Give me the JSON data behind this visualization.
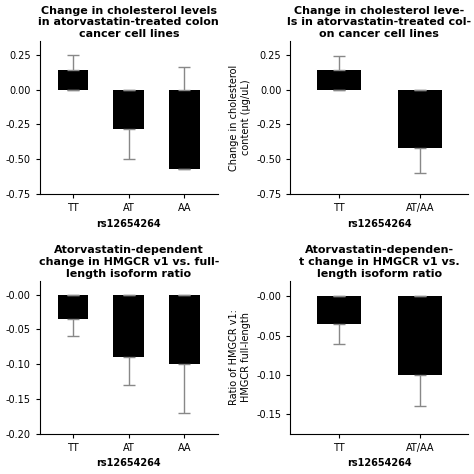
{
  "plots": [
    {
      "title": "Change in cholesterol levels\nin atorvastatin-treated colon\ncancer cell lines",
      "xlabel": "rs12654264",
      "ylabel": "",
      "categories": [
        "TT",
        "AT",
        "AA"
      ],
      "bar_bottoms": [
        0.0,
        -0.28,
        -0.57
      ],
      "bar_tops": [
        0.14,
        0.0,
        0.0
      ],
      "err_low": [
        0.0,
        0.22,
        0.0
      ],
      "err_high": [
        0.11,
        0.0,
        0.16
      ],
      "ylim": [
        -0.75,
        0.35
      ],
      "yticks": [
        -0.75,
        -0.5,
        -0.25,
        0.0,
        0.25
      ],
      "ytick_labels": [
        "-0.75",
        "-0.50",
        "-0.25",
        "0.00",
        "0.25"
      ],
      "has_ylabel": false,
      "col": 0
    },
    {
      "title": "Change in cholesterol leve-\nls in atorvastatin-treated col-\non cancer cell lines",
      "xlabel": "rs12654264",
      "ylabel": "Change in cholesterol\ncontent (μg/uL)",
      "categories": [
        "TT",
        "AT/AA"
      ],
      "bar_bottoms": [
        0.0,
        -0.42
      ],
      "bar_tops": [
        0.14,
        0.0
      ],
      "err_low": [
        0.0,
        0.18
      ],
      "err_high": [
        0.1,
        0.0
      ],
      "ylim": [
        -0.75,
        0.35
      ],
      "yticks": [
        -0.75,
        -0.5,
        -0.25,
        0.0,
        0.25
      ],
      "ytick_labels": [
        "-0.75",
        "-0.50",
        "-0.25",
        "0.00",
        "0.25"
      ],
      "has_ylabel": true,
      "col": 1
    },
    {
      "title": "Atorvastatin-dependent\nchange in HMGCR v1 vs. full-\nlength isoform ratio",
      "xlabel": "rs12654264",
      "ylabel": "",
      "categories": [
        "TT",
        "AT",
        "AA"
      ],
      "bar_bottoms": [
        -0.035,
        -0.09,
        -0.1
      ],
      "bar_tops": [
        0.0,
        0.0,
        0.0
      ],
      "err_low": [
        0.025,
        0.04,
        0.07
      ],
      "err_high": [
        0.0,
        0.0,
        0.0
      ],
      "ylim": [
        -0.2,
        0.02
      ],
      "yticks": [
        -0.2,
        -0.15,
        -0.1,
        -0.05,
        0.0
      ],
      "ytick_labels": [
        "-0.20",
        "-0.15",
        "-0.10",
        "-0.05",
        "-0.00"
      ],
      "has_ylabel": false,
      "col": 0
    },
    {
      "title": "Atorvastatin-dependen-\nt change in HMGCR v1 vs.\nlength isoform ratio",
      "xlabel": "rs12654264",
      "ylabel": "Ratio of HMGCR v1:\nHMGCR full-length",
      "categories": [
        "TT",
        "AT/AA"
      ],
      "bar_bottoms": [
        -0.035,
        -0.1
      ],
      "bar_tops": [
        0.0,
        0.0
      ],
      "err_low": [
        0.025,
        0.04
      ],
      "err_high": [
        0.0,
        0.0
      ],
      "ylim": [
        -0.175,
        0.02
      ],
      "yticks": [
        -0.15,
        -0.1,
        -0.05,
        0.0
      ],
      "ytick_labels": [
        "-0.15",
        "-0.10",
        "-0.05",
        "-0.00"
      ],
      "has_ylabel": true,
      "col": 1
    }
  ],
  "bar_color": "#000000",
  "bar_width": 0.55,
  "capsize": 4,
  "error_color": "#888888",
  "error_linewidth": 1.0,
  "title_fontsize": 8,
  "label_fontsize": 7,
  "tick_fontsize": 7
}
